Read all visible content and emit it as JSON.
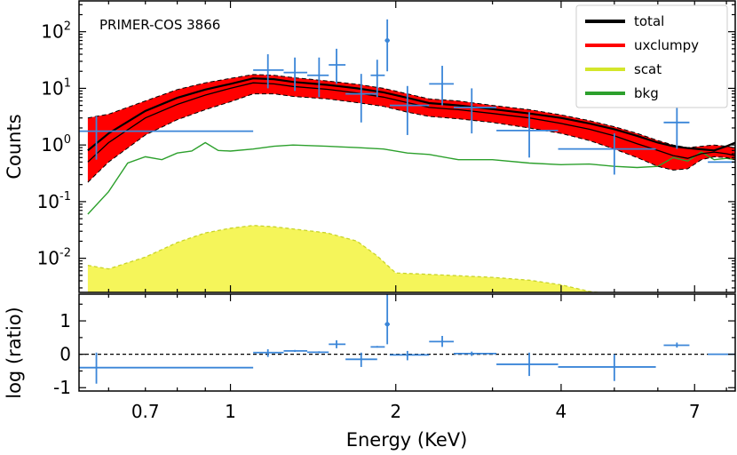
{
  "chart_data": {
    "type": "line",
    "title": "PRIMER-COS 3866",
    "xlabel": "Energy (KeV)",
    "xscale": "log",
    "xlim": [
      0.53,
      8.3
    ],
    "xticks": [
      {
        "value": 0.7,
        "label": "0.7"
      },
      {
        "value": 1,
        "label": "1"
      },
      {
        "value": 2,
        "label": "2"
      },
      {
        "value": 4,
        "label": "4"
      },
      {
        "value": 7,
        "label": "7"
      }
    ],
    "top_panel": {
      "ylabel": "Counts",
      "yscale": "log",
      "ylim": [
        0.0025,
        350
      ],
      "yticks": [
        {
          "value": 100,
          "base": "10",
          "exp": "2"
        },
        {
          "value": 10,
          "base": "10",
          "exp": "1"
        },
        {
          "value": 1,
          "base": "10",
          "exp": "0"
        },
        {
          "value": 0.1,
          "base": "10",
          "exp": "-1"
        },
        {
          "value": 0.01,
          "base": "10",
          "exp": "-2"
        }
      ],
      "legend": {
        "position": "top-right",
        "entries": [
          {
            "label": "total",
            "color": "#000000"
          },
          {
            "label": "uxclumpy",
            "color": "#ff0000"
          },
          {
            "label": "scat",
            "color": "#d4e62b"
          },
          {
            "label": "bkg",
            "color": "#2ca02c"
          }
        ]
      },
      "series": [
        {
          "name": "total",
          "color": "#000000",
          "x": [
            0.55,
            0.6,
            0.7,
            0.8,
            0.9,
            1.0,
            1.1,
            1.2,
            1.3,
            1.5,
            1.7,
            1.9,
            2.1,
            2.3,
            2.6,
            3.0,
            3.5,
            4.0,
            4.5,
            5.0,
            5.5,
            6.0,
            6.4,
            6.8,
            7.2,
            7.6,
            8.0,
            8.3
          ],
          "y": [
            0.8,
            1.6,
            4.0,
            6.8,
            9.5,
            12.0,
            15.0,
            14.5,
            13.0,
            11.5,
            10.0,
            8.5,
            6.8,
            5.5,
            5.0,
            4.3,
            3.6,
            3.0,
            2.4,
            1.9,
            1.45,
            1.1,
            0.95,
            0.88,
            0.84,
            0.8,
            0.95,
            1.1
          ]
        },
        {
          "name": "uxclumpy",
          "color": "#ff0000",
          "x": [
            0.55,
            0.6,
            0.7,
            0.8,
            0.9,
            1.0,
            1.1,
            1.2,
            1.3,
            1.5,
            1.7,
            1.9,
            2.1,
            2.3,
            2.6,
            3.0,
            3.5,
            4.0,
            4.5,
            5.0,
            5.5,
            6.0,
            6.4,
            6.8,
            7.2,
            7.6,
            8.0,
            8.3
          ],
          "y": [
            0.5,
            1.1,
            3.0,
            5.2,
            7.6,
            10.0,
            12.5,
            12.0,
            10.8,
            9.6,
            8.3,
            7.0,
            5.6,
            4.6,
            4.2,
            3.6,
            3.0,
            2.4,
            1.9,
            1.45,
            1.05,
            0.8,
            0.65,
            0.58,
            0.7,
            0.75,
            0.7,
            0.65
          ],
          "band_low": [
            0.22,
            0.5,
            1.5,
            2.8,
            4.2,
            5.8,
            8.0,
            8.0,
            7.2,
            6.5,
            5.6,
            4.8,
            3.8,
            3.2,
            2.9,
            2.5,
            2.0,
            1.6,
            1.2,
            0.85,
            0.6,
            0.42,
            0.36,
            0.38,
            0.55,
            0.62,
            0.6,
            0.55
          ],
          "band_high": [
            3.0,
            3.5,
            6.0,
            9.5,
            12.5,
            15.0,
            17.5,
            17.0,
            15.5,
            13.5,
            11.8,
            10.0,
            8.0,
            6.5,
            6.0,
            5.0,
            4.2,
            3.4,
            2.7,
            2.1,
            1.6,
            1.2,
            1.0,
            0.9,
            0.95,
            1.0,
            0.95,
            0.9
          ]
        },
        {
          "name": "bkg",
          "color": "#2ca02c",
          "x": [
            0.55,
            0.6,
            0.65,
            0.7,
            0.75,
            0.8,
            0.85,
            0.9,
            0.95,
            1.0,
            1.1,
            1.2,
            1.3,
            1.5,
            1.7,
            1.9,
            2.1,
            2.3,
            2.6,
            3.0,
            3.5,
            4.0,
            4.5,
            5.0,
            5.5,
            6.0,
            6.4,
            6.8,
            7.2,
            7.6,
            8.0,
            8.3
          ],
          "y": [
            0.06,
            0.15,
            0.48,
            0.62,
            0.55,
            0.72,
            0.78,
            1.1,
            0.8,
            0.78,
            0.85,
            0.95,
            1.0,
            0.95,
            0.9,
            0.85,
            0.72,
            0.68,
            0.55,
            0.55,
            0.48,
            0.45,
            0.46,
            0.42,
            0.4,
            0.42,
            0.6,
            0.52,
            0.75,
            0.55,
            0.58,
            0.55
          ]
        },
        {
          "name": "scat",
          "color": "#d4e62b",
          "x": [
            0.55,
            0.6,
            0.7,
            0.8,
            0.9,
            1.0,
            1.1,
            1.2,
            1.3,
            1.5,
            1.7,
            1.85,
            2.0,
            2.2,
            2.5,
            3.0,
            3.5,
            4.0,
            4.5,
            5.0
          ],
          "y": [
            0.0075,
            0.0065,
            0.0105,
            0.019,
            0.028,
            0.034,
            0.038,
            0.036,
            0.033,
            0.028,
            0.02,
            0.011,
            0.0055,
            0.0053,
            0.005,
            0.0046,
            0.0041,
            0.0034,
            0.0026,
            0.0023
          ]
        }
      ],
      "data_points": {
        "color": "#3b86d8",
        "points": [
          {
            "x": 0.57,
            "xlo": 0.53,
            "xhi": 1.1,
            "y": 1.75,
            "ylo": 0.55,
            "yhi": 3.2
          },
          {
            "x": 1.17,
            "xlo": 1.1,
            "xhi": 1.25,
            "y": 21,
            "ylo": 10,
            "yhi": 40
          },
          {
            "x": 1.31,
            "xlo": 1.25,
            "xhi": 1.38,
            "y": 19,
            "ylo": 9,
            "yhi": 35
          },
          {
            "x": 1.45,
            "xlo": 1.38,
            "xhi": 1.51,
            "y": 17,
            "ylo": 7,
            "yhi": 35
          },
          {
            "x": 1.56,
            "xlo": 1.51,
            "xhi": 1.62,
            "y": 26,
            "ylo": 12,
            "yhi": 50
          },
          {
            "x": 1.73,
            "xlo": 1.62,
            "xhi": 1.85,
            "y": 8,
            "ylo": 2.5,
            "yhi": 18
          },
          {
            "x": 1.85,
            "xlo": 1.8,
            "xhi": 1.91,
            "y": 17,
            "ylo": 7,
            "yhi": 32
          },
          {
            "x": 1.93,
            "xlo": 1.91,
            "xhi": 1.95,
            "y": 70,
            "ylo": 20,
            "yhi": 165
          },
          {
            "x": 2.1,
            "xlo": 1.95,
            "xhi": 2.3,
            "y": 5,
            "ylo": 1.5,
            "yhi": 11
          },
          {
            "x": 2.43,
            "xlo": 2.3,
            "xhi": 2.55,
            "y": 12,
            "ylo": 5,
            "yhi": 25
          },
          {
            "x": 2.75,
            "xlo": 2.55,
            "xhi": 3.05,
            "y": 4.6,
            "ylo": 1.6,
            "yhi": 10
          },
          {
            "x": 3.5,
            "xlo": 3.05,
            "xhi": 3.95,
            "y": 1.8,
            "ylo": 0.6,
            "yhi": 3.8
          },
          {
            "x": 5.0,
            "xlo": 3.95,
            "xhi": 5.95,
            "y": 0.85,
            "ylo": 0.3,
            "yhi": 1.6
          },
          {
            "x": 6.5,
            "xlo": 6.15,
            "xhi": 6.85,
            "y": 2.5,
            "ylo": 0.85,
            "yhi": 5.5
          },
          {
            "x": 8.3,
            "xlo": 7.4,
            "xhi": 8.3,
            "y": 0.5,
            "ylo": 0.5,
            "yhi": 0.5
          }
        ]
      },
      "annotation": "PRIMER-COS 3866"
    },
    "bottom_panel": {
      "ylabel": "log (ratio)",
      "ylim": [
        -1.1,
        1.8
      ],
      "yticks": [
        {
          "value": 1,
          "label": "1"
        },
        {
          "value": 0,
          "label": "0"
        },
        {
          "value": -1,
          "label": "-1"
        }
      ],
      "reference_line": 0,
      "data_points": {
        "color": "#3b86d8",
        "points": [
          {
            "x": 0.57,
            "xlo": 0.53,
            "xhi": 1.1,
            "y": -0.4,
            "ylo": -0.88,
            "yhi": 0.05
          },
          {
            "x": 1.17,
            "xlo": 1.1,
            "xhi": 1.25,
            "y": 0.05,
            "ylo": -0.08,
            "yhi": 0.15
          },
          {
            "x": 1.31,
            "xlo": 1.25,
            "xhi": 1.38,
            "y": 0.1,
            "ylo": 0.07,
            "yhi": 0.13
          },
          {
            "x": 1.45,
            "xlo": 1.38,
            "xhi": 1.51,
            "y": 0.06,
            "ylo": 0.03,
            "yhi": 0.09
          },
          {
            "x": 1.56,
            "xlo": 1.51,
            "xhi": 1.62,
            "y": 0.3,
            "ylo": 0.18,
            "yhi": 0.42
          },
          {
            "x": 1.73,
            "xlo": 1.62,
            "xhi": 1.85,
            "y": -0.15,
            "ylo": -0.38,
            "yhi": 0.05
          },
          {
            "x": 1.85,
            "xlo": 1.8,
            "xhi": 1.91,
            "y": 0.22,
            "ylo": 0.2,
            "yhi": 0.25
          },
          {
            "x": 1.93,
            "xlo": 1.91,
            "xhi": 1.95,
            "y": 0.9,
            "ylo": 0.3,
            "yhi": 1.8
          },
          {
            "x": 2.1,
            "xlo": 1.95,
            "xhi": 2.3,
            "y": -0.02,
            "ylo": -0.18,
            "yhi": 0.1
          },
          {
            "x": 2.43,
            "xlo": 2.3,
            "xhi": 2.55,
            "y": 0.38,
            "ylo": 0.22,
            "yhi": 0.55
          },
          {
            "x": 2.75,
            "xlo": 2.55,
            "xhi": 3.05,
            "y": 0.02,
            "ylo": -0.05,
            "yhi": 0.08
          },
          {
            "x": 3.5,
            "xlo": 3.05,
            "xhi": 3.95,
            "y": -0.3,
            "ylo": -0.65,
            "yhi": 0.05
          },
          {
            "x": 5.0,
            "xlo": 3.95,
            "xhi": 5.95,
            "y": -0.38,
            "ylo": -0.8,
            "yhi": 0.0
          },
          {
            "x": 6.5,
            "xlo": 6.15,
            "xhi": 6.85,
            "y": 0.27,
            "ylo": 0.2,
            "yhi": 0.35
          },
          {
            "x": 8.3,
            "xlo": 7.4,
            "xhi": 8.3,
            "y": 0.0,
            "ylo": 0.0,
            "yhi": 0.0
          }
        ]
      }
    }
  }
}
